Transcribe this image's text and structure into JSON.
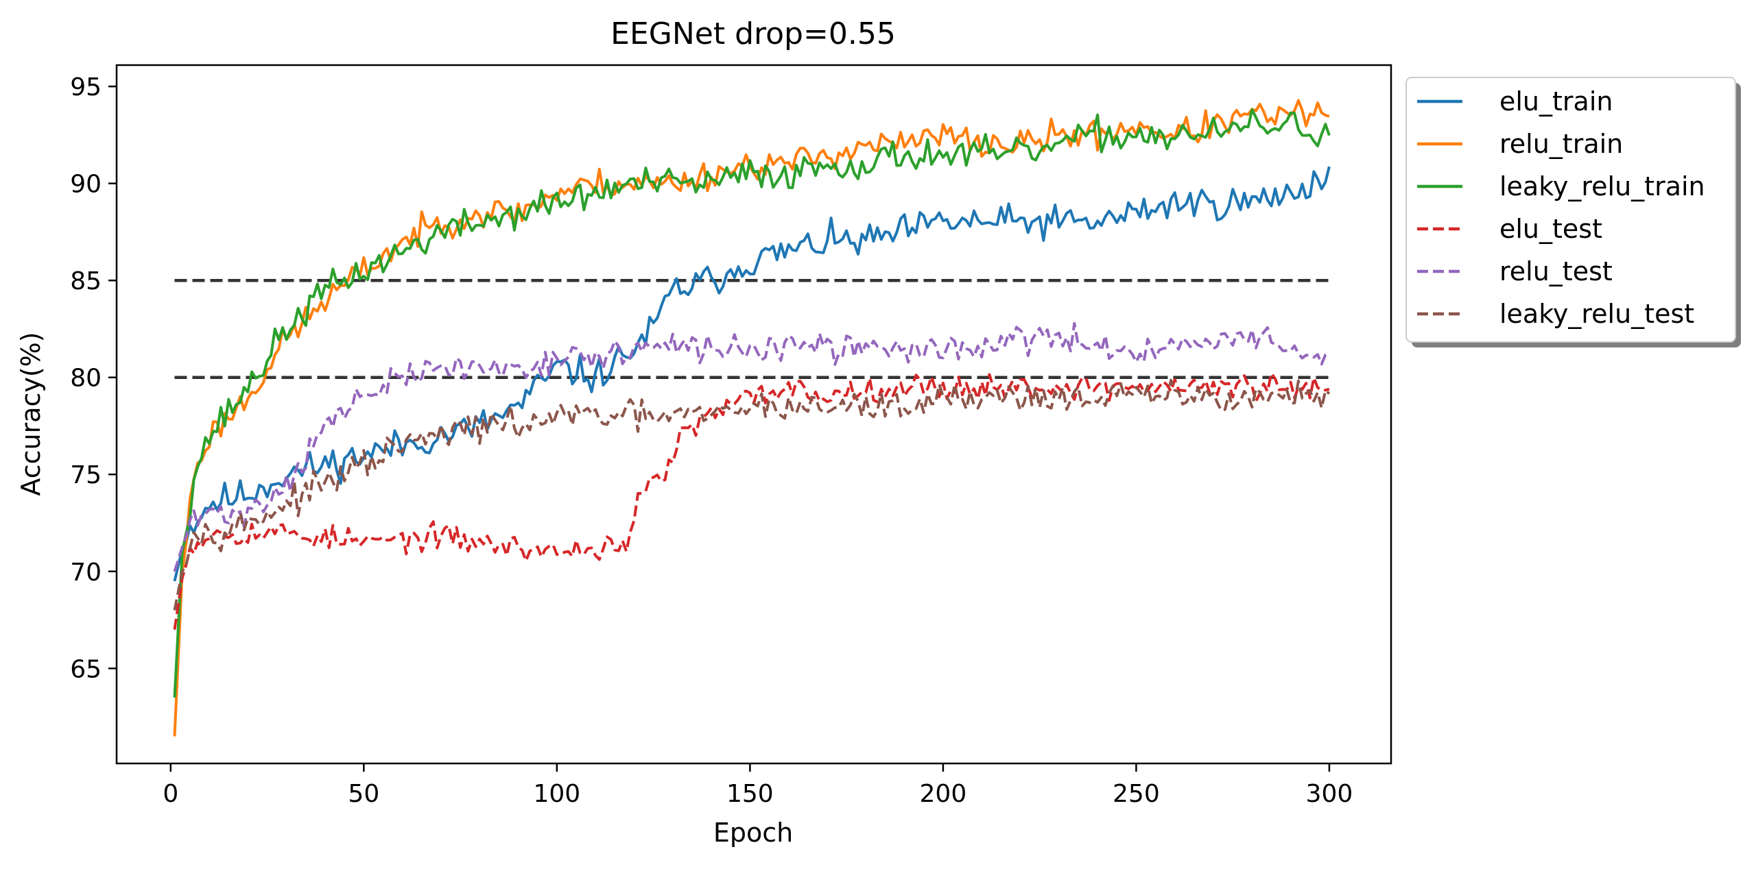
{
  "chart_data": {
    "type": "line",
    "title": "EEGNet drop=0.55",
    "xlabel": "Epoch",
    "ylabel": "Accuracy(%)",
    "xlim": [
      -14,
      316
    ],
    "ylim": [
      60.1,
      96.1
    ],
    "xticks": [
      0,
      50,
      100,
      150,
      200,
      250,
      300
    ],
    "yticks": [
      65,
      70,
      75,
      80,
      85,
      90,
      95
    ],
    "grid": false,
    "legend_position": "outside-top-right",
    "reference_lines": [
      {
        "y": 85,
        "x_range": [
          1,
          300
        ],
        "color": "#333333",
        "style": "dashed"
      },
      {
        "y": 80,
        "x_range": [
          1,
          300
        ],
        "color": "#333333",
        "style": "dashed"
      }
    ],
    "epochs": [
      1,
      300
    ],
    "series": [
      {
        "name": "elu_train",
        "color": "#1f77b4",
        "style": "solid",
        "anchors": [
          [
            1,
            69.5
          ],
          [
            4,
            72
          ],
          [
            10,
            73.5
          ],
          [
            20,
            74
          ],
          [
            30,
            75
          ],
          [
            40,
            75.5
          ],
          [
            50,
            76
          ],
          [
            60,
            76.5
          ],
          [
            70,
            77
          ],
          [
            80,
            77.5
          ],
          [
            90,
            78.5
          ],
          [
            100,
            80.5
          ],
          [
            110,
            80
          ],
          [
            120,
            81.5
          ],
          [
            125,
            82.5
          ],
          [
            130,
            84.5
          ],
          [
            140,
            85
          ],
          [
            150,
            86
          ],
          [
            160,
            86.5
          ],
          [
            170,
            87
          ],
          [
            180,
            87
          ],
          [
            190,
            87.5
          ],
          [
            200,
            88
          ],
          [
            210,
            88
          ],
          [
            220,
            88
          ],
          [
            230,
            88
          ],
          [
            240,
            88
          ],
          [
            250,
            88.5
          ],
          [
            260,
            89
          ],
          [
            270,
            89
          ],
          [
            280,
            89
          ],
          [
            290,
            89.5
          ],
          [
            300,
            90.5
          ]
        ],
        "noise": 0.8,
        "seed": 11
      },
      {
        "name": "relu_train",
        "color": "#ff7f0e",
        "style": "solid",
        "anchors": [
          [
            1,
            61.5
          ],
          [
            3,
            70
          ],
          [
            6,
            75
          ],
          [
            10,
            77
          ],
          [
            20,
            79
          ],
          [
            30,
            82
          ],
          [
            40,
            84
          ],
          [
            50,
            85.5
          ],
          [
            60,
            87
          ],
          [
            70,
            88
          ],
          [
            80,
            88.5
          ],
          [
            90,
            88.5
          ],
          [
            100,
            89.5
          ],
          [
            110,
            90
          ],
          [
            120,
            90
          ],
          [
            130,
            90
          ],
          [
            140,
            90.5
          ],
          [
            150,
            91
          ],
          [
            160,
            91
          ],
          [
            170,
            91.5
          ],
          [
            180,
            92
          ],
          [
            190,
            92
          ],
          [
            200,
            92.5
          ],
          [
            210,
            92
          ],
          [
            220,
            92
          ],
          [
            230,
            92.5
          ],
          [
            240,
            92.5
          ],
          [
            250,
            93
          ],
          [
            260,
            92.5
          ],
          [
            270,
            93
          ],
          [
            280,
            93.5
          ],
          [
            290,
            93.5
          ],
          [
            300,
            93.7
          ]
        ],
        "noise": 0.7,
        "seed": 23
      },
      {
        "name": "leaky_relu_train",
        "color": "#2ca02c",
        "style": "solid",
        "anchors": [
          [
            1,
            63.5
          ],
          [
            3,
            71
          ],
          [
            6,
            75
          ],
          [
            10,
            77
          ],
          [
            20,
            79.5
          ],
          [
            30,
            82.5
          ],
          [
            40,
            84.5
          ],
          [
            50,
            85.5
          ],
          [
            60,
            86.5
          ],
          [
            70,
            87.5
          ],
          [
            80,
            88
          ],
          [
            90,
            88.5
          ],
          [
            100,
            89
          ],
          [
            110,
            89.5
          ],
          [
            120,
            90
          ],
          [
            130,
            90
          ],
          [
            140,
            90
          ],
          [
            150,
            90.5
          ],
          [
            160,
            90.5
          ],
          [
            170,
            91
          ],
          [
            180,
            91
          ],
          [
            190,
            91.5
          ],
          [
            200,
            91.5
          ],
          [
            210,
            91.5
          ],
          [
            220,
            91.5
          ],
          [
            230,
            92
          ],
          [
            240,
            92.5
          ],
          [
            250,
            92.5
          ],
          [
            260,
            92.5
          ],
          [
            270,
            92.5
          ],
          [
            280,
            93
          ],
          [
            290,
            93
          ],
          [
            300,
            92.5
          ]
        ],
        "noise": 0.75,
        "seed": 37
      },
      {
        "name": "elu_test",
        "color": "#d62728",
        "style": "dashed",
        "anchors": [
          [
            1,
            67
          ],
          [
            4,
            71
          ],
          [
            10,
            72
          ],
          [
            30,
            72
          ],
          [
            50,
            71.5
          ],
          [
            70,
            71.8
          ],
          [
            90,
            71.2
          ],
          [
            100,
            71
          ],
          [
            110,
            71.2
          ],
          [
            118,
            71.5
          ],
          [
            122,
            74
          ],
          [
            128,
            75
          ],
          [
            132,
            77
          ],
          [
            140,
            78
          ],
          [
            150,
            79
          ],
          [
            160,
            79.5
          ],
          [
            170,
            79
          ],
          [
            180,
            79.5
          ],
          [
            190,
            79.5
          ],
          [
            200,
            79.5
          ],
          [
            210,
            79.5
          ],
          [
            220,
            79.5
          ],
          [
            230,
            79.5
          ],
          [
            240,
            79.5
          ],
          [
            250,
            79.5
          ],
          [
            260,
            79.5
          ],
          [
            270,
            79.5
          ],
          [
            280,
            79.5
          ],
          [
            290,
            79.5
          ],
          [
            300,
            79.2
          ]
        ],
        "noise": 0.6,
        "seed": 53
      },
      {
        "name": "relu_test",
        "color": "#9467bd",
        "style": "dashed",
        "anchors": [
          [
            1,
            70
          ],
          [
            5,
            72.5
          ],
          [
            10,
            73
          ],
          [
            20,
            73
          ],
          [
            30,
            74.5
          ],
          [
            40,
            77.5
          ],
          [
            50,
            79
          ],
          [
            60,
            80
          ],
          [
            70,
            80.5
          ],
          [
            80,
            80.5
          ],
          [
            90,
            80.5
          ],
          [
            100,
            81
          ],
          [
            110,
            81
          ],
          [
            120,
            81.5
          ],
          [
            130,
            81.5
          ],
          [
            140,
            81.5
          ],
          [
            150,
            81.5
          ],
          [
            160,
            81.5
          ],
          [
            170,
            81.5
          ],
          [
            180,
            81.5
          ],
          [
            190,
            81.5
          ],
          [
            200,
            81.5
          ],
          [
            210,
            81.5
          ],
          [
            220,
            82
          ],
          [
            230,
            82
          ],
          [
            240,
            81.5
          ],
          [
            250,
            81.5
          ],
          [
            260,
            81.5
          ],
          [
            270,
            82
          ],
          [
            280,
            82
          ],
          [
            290,
            81.5
          ],
          [
            300,
            80.8
          ]
        ],
        "noise": 0.65,
        "seed": 71
      },
      {
        "name": "leaky_relu_test",
        "color": "#8c564b",
        "style": "dashed",
        "anchors": [
          [
            1,
            68
          ],
          [
            5,
            72
          ],
          [
            10,
            72
          ],
          [
            20,
            72.5
          ],
          [
            30,
            73.5
          ],
          [
            40,
            74.5
          ],
          [
            50,
            75.5
          ],
          [
            60,
            76.5
          ],
          [
            70,
            77
          ],
          [
            80,
            77.5
          ],
          [
            90,
            77.5
          ],
          [
            100,
            78
          ],
          [
            110,
            78
          ],
          [
            120,
            78
          ],
          [
            130,
            78
          ],
          [
            140,
            78
          ],
          [
            150,
            78.5
          ],
          [
            160,
            78.5
          ],
          [
            170,
            78.5
          ],
          [
            180,
            78.5
          ],
          [
            190,
            78.5
          ],
          [
            200,
            79
          ],
          [
            210,
            79
          ],
          [
            220,
            79
          ],
          [
            230,
            79
          ],
          [
            240,
            79
          ],
          [
            250,
            79
          ],
          [
            260,
            79
          ],
          [
            270,
            79
          ],
          [
            280,
            79
          ],
          [
            290,
            79
          ],
          [
            300,
            79
          ]
        ],
        "noise": 0.7,
        "seed": 97
      }
    ]
  }
}
